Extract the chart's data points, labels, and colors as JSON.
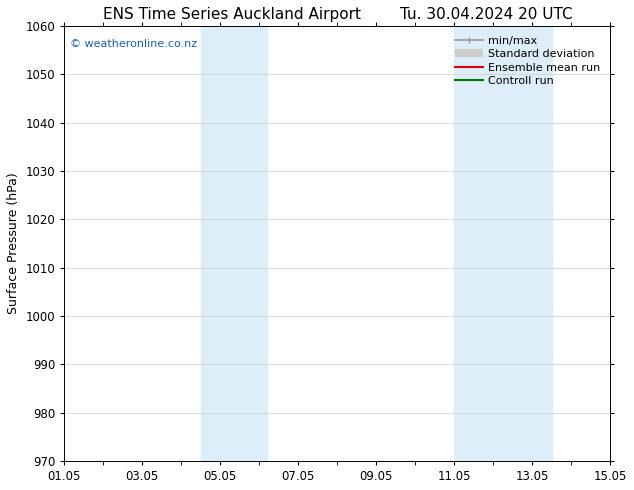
{
  "title_left": "ENS Time Series Auckland Airport",
  "title_right": "Tu. 30.04.2024 20 UTC",
  "ylabel": "Surface Pressure (hPa)",
  "ylim": [
    970,
    1060
  ],
  "yticks": [
    970,
    980,
    990,
    1000,
    1010,
    1020,
    1030,
    1040,
    1050,
    1060
  ],
  "xlim_start": 0,
  "xlim_end": 14,
  "xtick_labels": [
    "01.05",
    "03.05",
    "05.05",
    "07.05",
    "09.05",
    "11.05",
    "13.05",
    "15.05"
  ],
  "xtick_positions": [
    0,
    2,
    4,
    6,
    8,
    10,
    12,
    14
  ],
  "shaded_bands": [
    {
      "x_start": 3.5,
      "x_end": 5.2
    },
    {
      "x_start": 10.0,
      "x_end": 12.5
    }
  ],
  "shaded_color": "#ddeef8",
  "watermark": "© weatheronline.co.nz",
  "watermark_color": "#1a5fb4",
  "bg_color": "#ffffff",
  "grid_color": "#cccccc",
  "legend_items": [
    {
      "label": "min/max",
      "color": "#999999",
      "lw": 1.2
    },
    {
      "label": "Standard deviation",
      "color": "#cccccc",
      "lw": 6
    },
    {
      "label": "Ensemble mean run",
      "color": "#dd0000",
      "lw": 1.5
    },
    {
      "label": "Controll run",
      "color": "#007700",
      "lw": 1.5
    }
  ],
  "title_fontsize": 11,
  "axis_label_fontsize": 9,
  "tick_fontsize": 8.5,
  "watermark_fontsize": 8,
  "legend_fontsize": 8
}
